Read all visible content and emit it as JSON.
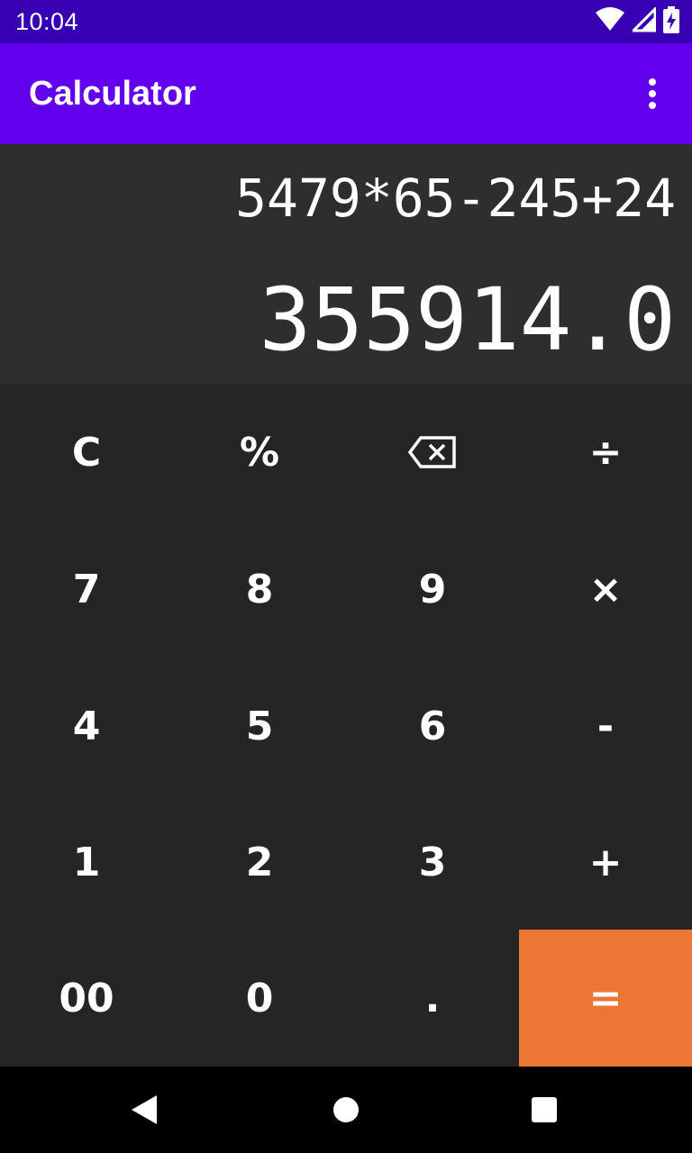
{
  "status_bar": {
    "time": "10:04",
    "icons": [
      "wifi-icon",
      "signal-icon",
      "battery-charging-icon"
    ]
  },
  "app_bar": {
    "title": "Calculator",
    "menu_icon": "more-vert-icon"
  },
  "display": {
    "expression": "5479*65-245+24",
    "result": "355914.0"
  },
  "keypad": {
    "clear": "C",
    "percent": "%",
    "backspace_icon": "backspace-icon",
    "divide": "÷",
    "seven": "7",
    "eight": "8",
    "nine": "9",
    "multiply": "×",
    "four": "4",
    "five": "5",
    "six": "6",
    "subtract": "-",
    "one": "1",
    "two": "2",
    "three": "3",
    "add": "+",
    "double_zero": "00",
    "zero": "0",
    "decimal": ".",
    "equals": "="
  },
  "nav_bar": {
    "icons": [
      "back-icon",
      "home-icon",
      "recents-icon"
    ]
  },
  "colors": {
    "status_bar": "#3700b3",
    "app_bar": "#6200ee",
    "display_bg": "#2e2e2e",
    "keypad_bg": "#252525",
    "equals_accent": "#ec7634"
  }
}
